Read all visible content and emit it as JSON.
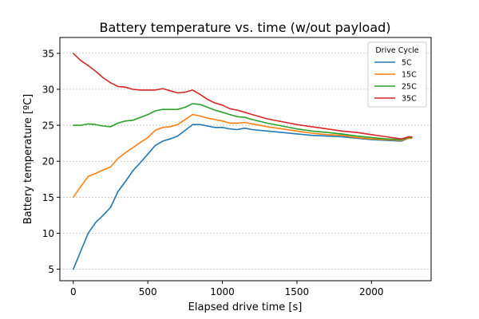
{
  "chart_data": {
    "type": "line",
    "title": "Battery temperature vs. time (w/out payload)",
    "xlabel": "Elapsed drive time [s]",
    "ylabel": "Battery temperature [ºC]",
    "xlim": [
      -90,
      2400
    ],
    "ylim": [
      3.4,
      37.2
    ],
    "xticks": [
      0,
      500,
      1000,
      1500,
      2000
    ],
    "yticks": [
      5,
      10,
      15,
      20,
      25,
      30,
      35
    ],
    "grid": "horizontal-dashed",
    "legend": {
      "title": "Drive Cycle",
      "placement": "top-right"
    },
    "series": [
      {
        "name": "5C",
        "color": "#1f77b4",
        "x": [
          0,
          50,
          100,
          150,
          200,
          250,
          300,
          350,
          400,
          450,
          500,
          550,
          600,
          650,
          700,
          750,
          800,
          850,
          900,
          950,
          1000,
          1050,
          1100,
          1150,
          1200,
          1300,
          1400,
          1500,
          1600,
          1700,
          1800,
          1900,
          2000,
          2100,
          2200,
          2250,
          2270
        ],
        "y": [
          5.0,
          7.5,
          10.0,
          11.5,
          12.5,
          13.6,
          15.8,
          17.2,
          18.7,
          19.8,
          21.0,
          22.2,
          22.8,
          23.1,
          23.5,
          24.3,
          25.1,
          25.1,
          24.9,
          24.7,
          24.7,
          24.5,
          24.4,
          24.6,
          24.4,
          24.2,
          24.0,
          23.8,
          23.6,
          23.5,
          23.4,
          23.2,
          23.0,
          22.9,
          22.8,
          23.2,
          23.2
        ]
      },
      {
        "name": "15C",
        "color": "#ff7f0e",
        "x": [
          0,
          50,
          100,
          150,
          200,
          250,
          300,
          350,
          400,
          450,
          500,
          550,
          600,
          650,
          700,
          750,
          800,
          850,
          900,
          950,
          1000,
          1050,
          1100,
          1150,
          1200,
          1300,
          1400,
          1500,
          1600,
          1700,
          1800,
          1900,
          2000,
          2100,
          2200,
          2250,
          2270
        ],
        "y": [
          15.0,
          16.5,
          17.9,
          18.3,
          18.8,
          19.2,
          20.4,
          21.2,
          21.9,
          22.6,
          23.3,
          24.3,
          24.7,
          24.8,
          25.1,
          25.8,
          26.5,
          26.3,
          26.0,
          25.8,
          25.6,
          25.3,
          25.3,
          25.4,
          25.2,
          24.8,
          24.5,
          24.2,
          23.9,
          23.7,
          23.6,
          23.3,
          23.1,
          23.0,
          22.9,
          23.2,
          23.2
        ]
      },
      {
        "name": "25C",
        "color": "#2ca02c",
        "x": [
          0,
          50,
          100,
          150,
          200,
          250,
          300,
          350,
          400,
          450,
          500,
          550,
          600,
          650,
          700,
          750,
          800,
          850,
          900,
          950,
          1000,
          1050,
          1100,
          1150,
          1200,
          1300,
          1400,
          1500,
          1600,
          1700,
          1800,
          1900,
          2000,
          2100,
          2200,
          2250,
          2270
        ],
        "y": [
          25.0,
          25.0,
          25.2,
          25.1,
          24.9,
          24.8,
          25.3,
          25.6,
          25.7,
          26.1,
          26.5,
          27.0,
          27.2,
          27.2,
          27.2,
          27.5,
          28.0,
          27.9,
          27.5,
          27.1,
          26.8,
          26.5,
          26.2,
          26.1,
          25.8,
          25.3,
          24.9,
          24.5,
          24.2,
          24.0,
          23.8,
          23.5,
          23.3,
          23.1,
          23.0,
          23.3,
          23.3
        ]
      },
      {
        "name": "35C",
        "color": "#d62728",
        "x": [
          0,
          50,
          100,
          150,
          200,
          250,
          300,
          350,
          400,
          450,
          500,
          550,
          600,
          650,
          700,
          750,
          800,
          850,
          900,
          950,
          1000,
          1050,
          1100,
          1150,
          1200,
          1300,
          1400,
          1500,
          1600,
          1700,
          1800,
          1900,
          2000,
          2100,
          2200,
          2250,
          2270
        ],
        "y": [
          35.0,
          34.0,
          33.3,
          32.5,
          31.6,
          30.9,
          30.4,
          30.3,
          30.0,
          29.9,
          29.9,
          29.9,
          30.1,
          29.8,
          29.5,
          29.6,
          29.9,
          29.3,
          28.6,
          28.1,
          27.8,
          27.3,
          27.1,
          26.8,
          26.5,
          25.9,
          25.5,
          25.1,
          24.8,
          24.5,
          24.2,
          24.0,
          23.7,
          23.4,
          23.1,
          23.4,
          23.4
        ]
      }
    ]
  }
}
